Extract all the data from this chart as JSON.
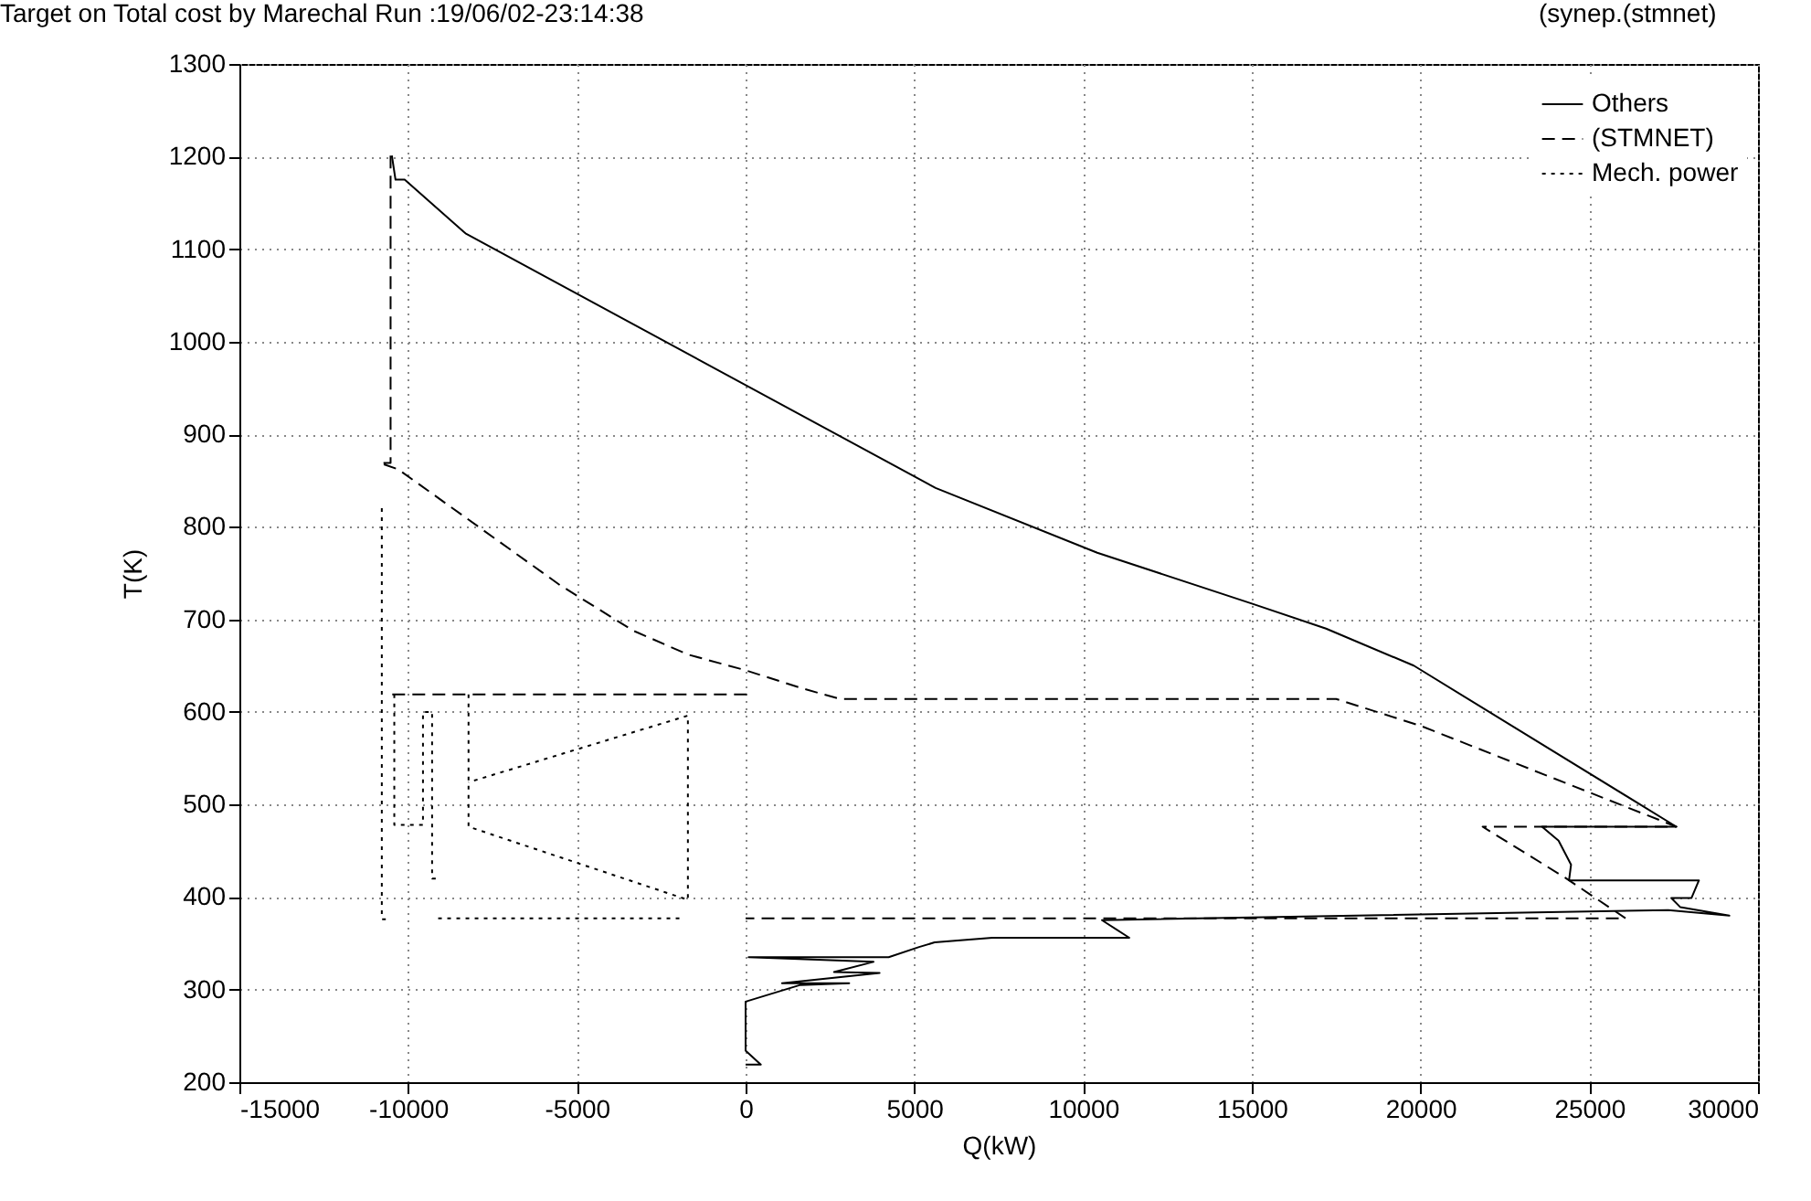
{
  "chart_data": {
    "type": "line",
    "title": "Target on Total cost by Marechal Run :19/06/02-23:14:38",
    "annotations": [
      "(synep.(stmnet)"
    ],
    "xlabel": "Q(kW)",
    "ylabel": "T(K)",
    "xlim": [
      -15000,
      30000
    ],
    "xticks": [
      -15000,
      -10000,
      -5000,
      0,
      5000,
      10000,
      15000,
      20000,
      25000,
      30000
    ],
    "ylim": [
      200,
      1300
    ],
    "yticks": [
      200,
      300,
      400,
      500,
      600,
      700,
      800,
      900,
      1000,
      1100,
      1200,
      1300
    ],
    "grid": true,
    "legend": "top right",
    "series": [
      {
        "name": "Others",
        "color": "#000000",
        "line_style": "solid",
        "x": [
          -10482,
          -10374,
          -10103,
          -8300,
          5630,
          10420,
          15000,
          17200,
          19800,
          27580,
          23600,
          24090,
          24460,
          24400,
          28250,
          28030,
          27430,
          27700,
          29150,
          27340,
          10560,
          11370,
          7310,
          5600,
          5140,
          4240,
          90,
          3790,
          2620,
          3970,
          1080,
          3070,
          1620,
          0,
          0,
          450,
          0
        ],
        "values": [
          1201,
          1175,
          1175,
          1117,
          842,
          772,
          717,
          690,
          650,
          476,
          476,
          461,
          435,
          418,
          418,
          399,
          399,
          389,
          380,
          386,
          375,
          356,
          356,
          351,
          346,
          335,
          335,
          330,
          319,
          318,
          307,
          307,
          305,
          287,
          234,
          219,
          219
        ]
      },
      {
        "name": "(STMNET)",
        "color": "#000000",
        "line_style": "dashed",
        "x": [
          -10520,
          -10520,
          -10830,
          -10290,
          -5500,
          -3340,
          -1710,
          0,
          1720,
          2800,
          17500,
          20000,
          27580,
          21840,
          24280,
          26080,
          0,
          null,
          -10470,
          90
        ],
        "values": [
          1201,
          869,
          869,
          862,
          737,
          688,
          662,
          645,
          625,
          614,
          614,
          585,
          476,
          476,
          421,
          377,
          377,
          null,
          619,
          619
        ]
      },
      {
        "name": "Mech. power",
        "color": "#000000",
        "line_style": "dotted",
        "x": [
          -10780,
          -10780,
          -10560,
          null,
          -10410,
          -10410,
          -9560,
          -9560,
          -9290,
          -9290,
          -9110,
          null,
          -8210,
          -8210,
          -1710,
          -1710,
          -8210,
          null,
          -9110,
          -1950
        ],
        "values": [
          820,
          376,
          376,
          null,
          619,
          478,
          478,
          600,
          600,
          420,
          420,
          null,
          619,
          476,
          397,
          596,
          524,
          null,
          377,
          377
        ]
      }
    ]
  }
}
